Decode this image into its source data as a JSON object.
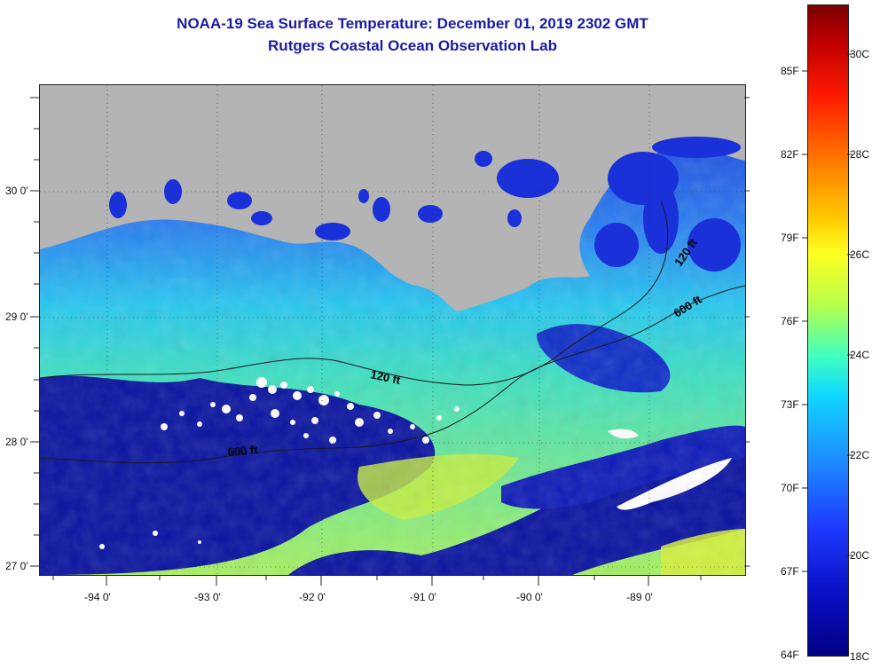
{
  "title": {
    "line1": "NOAA-19 Sea Surface Temperature:  December 01, 2019 2302 GMT",
    "line2": "Rutgers Coastal Ocean Observation Lab"
  },
  "latitude_labels": [
    "30 0'",
    "29 0'",
    "28 0'",
    "27 0'"
  ],
  "longitude_labels": [
    "-94 0'",
    "-93 0'",
    "-92 0'",
    "-91 0'",
    "-90 0'",
    "-89 0'"
  ],
  "contour_labels": {
    "shelf_120_west": "120 ft",
    "shelf_600_west": "600 ft",
    "shelf_120_east": "120 ft",
    "shelf_600_east": "600 ft"
  },
  "colorbar": {
    "fahrenheit": [
      "85F",
      "82F",
      "79F",
      "76F",
      "73F",
      "70F",
      "67F",
      "64F"
    ],
    "celsius": [
      "30C",
      "28C",
      "26C",
      "24C",
      "22C",
      "20C",
      "18C"
    ]
  },
  "colors": {
    "title": "#1a1aa6",
    "land": "#b4b4b4",
    "cloud": "#ffffff",
    "deep_blue": "#0a14a0",
    "mid_blue": "#1e50ff",
    "cyan": "#20c8ff",
    "green_yellow": "#b8f040"
  }
}
